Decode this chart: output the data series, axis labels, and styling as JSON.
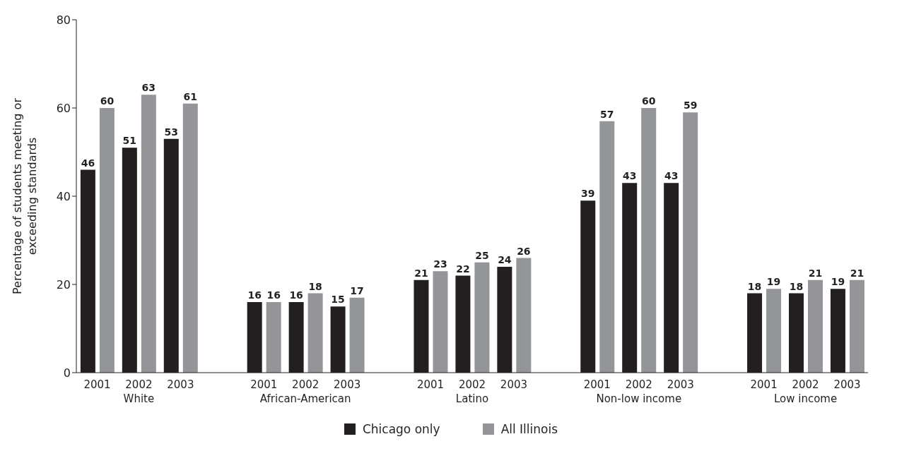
{
  "chart_data": {
    "type": "bar",
    "ylabel": "Percentage of students meeting or exceeding standards",
    "categories": [
      "2001",
      "2002",
      "2003",
      "2001",
      "2002",
      "2003",
      "2001",
      "2002",
      "2003",
      "2001",
      "2002",
      "2003",
      "2001",
      "2002",
      "2003"
    ],
    "annotations": [
      "White",
      "African-American",
      "Latino",
      "Non-low income",
      "Low income"
    ],
    "series": [
      {
        "name": "Chicago only",
        "color": "#231f20",
        "values": [
          46,
          51,
          53,
          16,
          16,
          15,
          21,
          22,
          24,
          39,
          43,
          43,
          18,
          18,
          19
        ]
      },
      {
        "name": "All Illinois",
        "color": "#939598",
        "values": [
          60,
          63,
          61,
          16,
          18,
          17,
          23,
          25,
          26,
          57,
          60,
          59,
          19,
          21,
          21
        ]
      }
    ],
    "ylim": [
      0,
      80
    ],
    "yticks": [
      0,
      20,
      40,
      60,
      80
    ],
    "grid": false,
    "legend": "bottom",
    "data_labels": true
  }
}
